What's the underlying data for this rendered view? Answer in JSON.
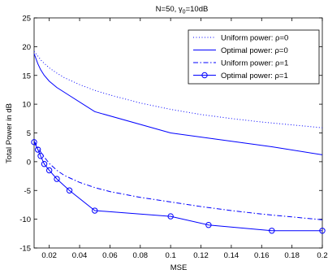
{
  "chart_data": {
    "type": "line",
    "title": "N=50, γ",
    "title_sub": "0",
    "title_tail": "=10dB",
    "xlabel": "MSE",
    "ylabel": "Total Power in dB",
    "xlim": [
      0.01,
      0.2
    ],
    "ylim": [
      -15,
      25
    ],
    "xticks": [
      0.02,
      0.04,
      0.06,
      0.08,
      0.1,
      0.12,
      0.14,
      0.16,
      0.18,
      0.2
    ],
    "xtick_labels": [
      "0.02",
      "0.04",
      "0.06",
      "0.08",
      "0.1",
      "0.12",
      "0.14",
      "0.16",
      "0.18",
      "0.2"
    ],
    "yticks": [
      -15,
      -10,
      -5,
      0,
      5,
      10,
      15,
      20,
      25
    ],
    "ytick_labels": [
      "-15",
      "-10",
      "-5",
      "0",
      "5",
      "10",
      "15",
      "20",
      "25"
    ],
    "grid": false,
    "legend_position": "top-right",
    "series": [
      {
        "name": "Uniform power: ρ=0",
        "color": "#0000ff",
        "dash": "dotted",
        "marker": "none",
        "x": [
          0.01,
          0.015,
          0.02,
          0.025,
          0.03,
          0.04,
          0.05,
          0.06,
          0.08,
          0.1,
          0.12,
          0.14,
          0.16,
          0.18,
          0.2
        ],
        "y": [
          19.2,
          17.5,
          16.3,
          15.4,
          14.6,
          13.4,
          12.4,
          11.6,
          10.2,
          9.1,
          8.2,
          7.5,
          6.9,
          6.4,
          5.9
        ]
      },
      {
        "name": "Optimal power: ρ=0",
        "color": "#0000ff",
        "dash": "solid",
        "marker": "none",
        "x": [
          0.01,
          0.0125,
          0.0143,
          0.0167,
          0.02,
          0.025,
          0.0333,
          0.05,
          0.1,
          0.125,
          0.1667,
          0.2
        ],
        "y": [
          18.8,
          17.0,
          16.0,
          15.0,
          14.0,
          12.9,
          11.5,
          8.7,
          5.0,
          4.1,
          2.6,
          1.2
        ]
      },
      {
        "name": "Uniform power: ρ=1",
        "color": "#0000ff",
        "dash": "dashdot",
        "marker": "none",
        "x": [
          0.01,
          0.015,
          0.02,
          0.025,
          0.03,
          0.04,
          0.05,
          0.06,
          0.08,
          0.1,
          0.12,
          0.14,
          0.16,
          0.18,
          0.2
        ],
        "y": [
          3.6,
          1.4,
          -0.3,
          -1.5,
          -2.4,
          -3.6,
          -4.5,
          -5.2,
          -6.2,
          -7.0,
          -7.8,
          -8.5,
          -9.1,
          -9.6,
          -10.1
        ]
      },
      {
        "name": "Optimal power: ρ=1",
        "color": "#0000ff",
        "dash": "solid",
        "marker": "circle",
        "x": [
          0.01,
          0.0125,
          0.0143,
          0.0167,
          0.02,
          0.025,
          0.0333,
          0.05,
          0.1,
          0.125,
          0.1667,
          0.2
        ],
        "y": [
          3.4,
          2.1,
          1.0,
          -0.4,
          -1.5,
          -3.0,
          -5.0,
          -8.5,
          -9.5,
          -11.0,
          -12.0,
          -12.0
        ]
      }
    ]
  }
}
